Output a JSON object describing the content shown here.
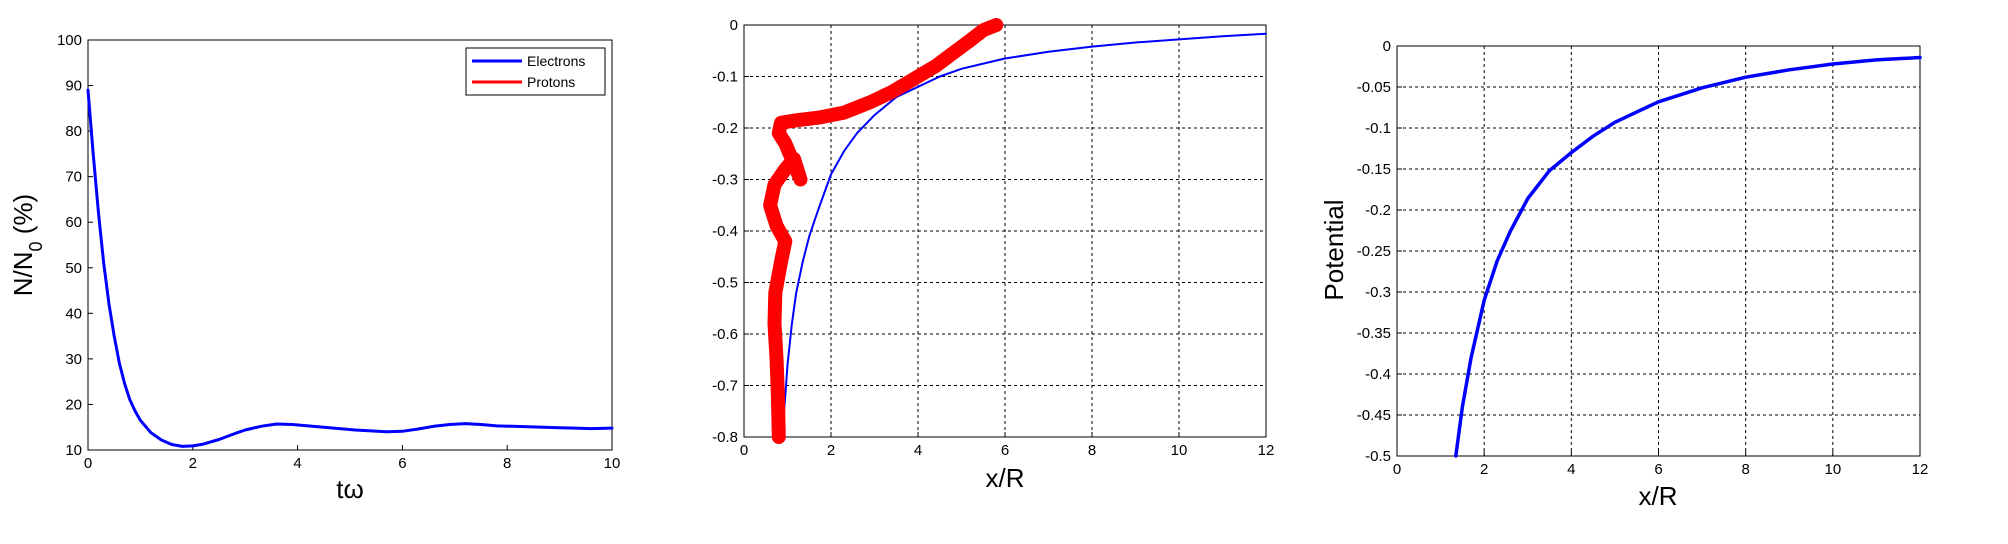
{
  "chart_data": [
    {
      "type": "line",
      "xlabel": "tω",
      "ylabel": "N/N",
      "ylabel_sub": "0",
      "ylabel_suffix": " (%)",
      "xlim": [
        0,
        10
      ],
      "ylim": [
        10,
        100
      ],
      "xticks": [
        "0",
        "2",
        "4",
        "6",
        "8",
        "10"
      ],
      "yticks": [
        "10",
        "20",
        "30",
        "40",
        "50",
        "60",
        "70",
        "80",
        "90",
        "100"
      ],
      "grid": false,
      "legend_position": "top-right",
      "series": [
        {
          "name": "Electrons",
          "color": "#0000ff",
          "x": [
            0,
            0.1,
            0.2,
            0.3,
            0.4,
            0.5,
            0.6,
            0.7,
            0.8,
            0.9,
            1.0,
            1.2,
            1.4,
            1.6,
            1.8,
            2.0,
            2.2,
            2.5,
            2.8,
            3.0,
            3.3,
            3.6,
            3.9,
            4.2,
            4.5,
            4.8,
            5.1,
            5.4,
            5.7,
            6.0,
            6.3,
            6.6,
            6.9,
            7.2,
            7.5,
            7.8,
            8.1,
            8.4,
            8.7,
            9.0,
            9.3,
            9.6,
            10.0
          ],
          "y": [
            89,
            75,
            62,
            51,
            42,
            35,
            29,
            24.5,
            21,
            18.5,
            16.5,
            13.8,
            12.2,
            11.2,
            10.8,
            10.9,
            11.3,
            12.3,
            13.6,
            14.4,
            15.2,
            15.7,
            15.6,
            15.3,
            15.0,
            14.7,
            14.4,
            14.2,
            14.0,
            14.1,
            14.6,
            15.2,
            15.6,
            15.8,
            15.6,
            15.3,
            15.2,
            15.1,
            15.0,
            14.9,
            14.8,
            14.7,
            14.8
          ]
        },
        {
          "name": "Protons",
          "color": "#ff0000",
          "x": [],
          "y": []
        }
      ]
    },
    {
      "type": "line",
      "xlabel": "x/R",
      "ylabel": "",
      "xlim": [
        0,
        12
      ],
      "ylim": [
        -0.8,
        0
      ],
      "xticks": [
        "0",
        "2",
        "4",
        "6",
        "8",
        "10",
        "12"
      ],
      "yticks": [
        "-0.8",
        "-0.7",
        "-0.6",
        "-0.5",
        "-0.4",
        "-0.3",
        "-0.2",
        "-0.1",
        "0"
      ],
      "grid": true,
      "series": [
        {
          "color": "#0000ff",
          "x": [
            0.87,
            0.95,
            1.0,
            1.1,
            1.2,
            1.35,
            1.5,
            1.7,
            2.0,
            2.3,
            2.6,
            3.0,
            3.5,
            4.0,
            4.5,
            5.0,
            5.5,
            6.0,
            7.0,
            8.0,
            9.0,
            10.0,
            11.0,
            12.0
          ],
          "y": [
            -0.8,
            -0.72,
            -0.66,
            -0.58,
            -0.52,
            -0.46,
            -0.41,
            -0.36,
            -0.29,
            -0.245,
            -0.21,
            -0.175,
            -0.14,
            -0.12,
            -0.1,
            -0.085,
            -0.075,
            -0.065,
            -0.052,
            -0.042,
            -0.034,
            -0.028,
            -0.022,
            -0.017
          ]
        },
        {
          "color": "#ff0000",
          "x": [
            0.8,
            0.78,
            0.75,
            0.7,
            0.72,
            0.85,
            0.95,
            0.75,
            0.6,
            0.7,
            0.95,
            1.15,
            1.3,
            1.15,
            0.95,
            0.8,
            0.85,
            1.2,
            1.7,
            2.3,
            2.9,
            3.4,
            3.9,
            4.4,
            4.8,
            5.2,
            5.5,
            5.8
          ],
          "y": [
            -0.8,
            -0.72,
            -0.65,
            -0.58,
            -0.52,
            -0.46,
            -0.42,
            -0.39,
            -0.35,
            -0.31,
            -0.28,
            -0.26,
            -0.3,
            -0.27,
            -0.23,
            -0.21,
            -0.19,
            -0.185,
            -0.18,
            -0.17,
            -0.15,
            -0.13,
            -0.105,
            -0.08,
            -0.055,
            -0.03,
            -0.01,
            0
          ]
        }
      ]
    },
    {
      "type": "line",
      "xlabel": "x/R",
      "ylabel": "Potential",
      "xlim": [
        0,
        12
      ],
      "ylim": [
        -0.5,
        0
      ],
      "xticks": [
        "0",
        "2",
        "4",
        "6",
        "8",
        "10",
        "12"
      ],
      "yticks": [
        "-0.5",
        "-0.45",
        "-0.4",
        "-0.35",
        "-0.3",
        "-0.25",
        "-0.2",
        "-0.15",
        "-0.1",
        "-0.05",
        "0"
      ],
      "grid": true,
      "series": [
        {
          "color": "#0000ff",
          "x": [
            1.35,
            1.5,
            1.7,
            2.0,
            2.3,
            2.6,
            3.0,
            3.5,
            4.0,
            4.5,
            5.0,
            6.0,
            7.0,
            8.0,
            9.0,
            10.0,
            11.0,
            12.0
          ],
          "y": [
            -0.5,
            -0.44,
            -0.38,
            -0.31,
            -0.262,
            -0.226,
            -0.186,
            -0.152,
            -0.13,
            -0.11,
            -0.093,
            -0.068,
            -0.051,
            -0.038,
            -0.029,
            -0.022,
            -0.017,
            -0.014
          ]
        }
      ]
    }
  ]
}
